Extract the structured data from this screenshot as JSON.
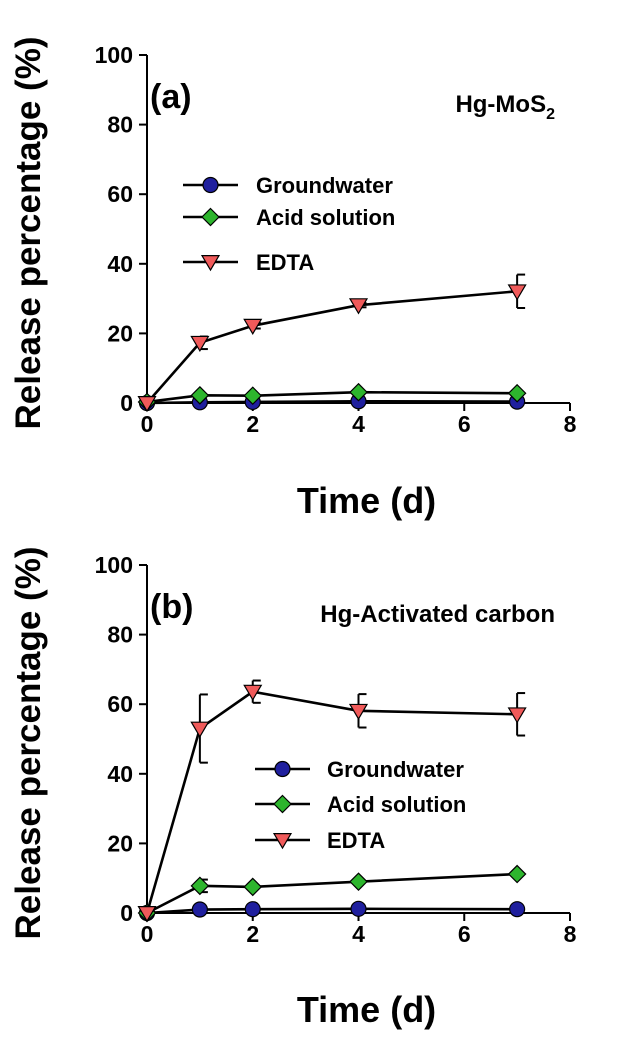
{
  "chart_data": [
    {
      "panel_label": "(a)",
      "type": "line",
      "title": "Hg-MoS₂",
      "title_main": "Hg-MoS",
      "title_sub": "2",
      "xlabel": "Time (d)",
      "ylabel": "Release percentage (%)",
      "xlim": [
        0,
        8
      ],
      "ylim": [
        0,
        100
      ],
      "xticks": [
        "0",
        "2",
        "4",
        "6",
        "8"
      ],
      "yticks": [
        "0",
        "20",
        "40",
        "60",
        "80",
        "100"
      ],
      "x": [
        0,
        1,
        2,
        4,
        7
      ],
      "legend_position": "center-left",
      "series": [
        {
          "name": "Groundwater",
          "marker": "circle",
          "color": "#1f1f9e",
          "values": [
            0,
            0.2,
            0.3,
            0.5,
            0.4
          ],
          "errors": [
            0,
            0,
            0,
            0,
            0
          ]
        },
        {
          "name": "Acid solution",
          "marker": "diamond",
          "color": "#2db52d",
          "values": [
            0.3,
            2.2,
            2.1,
            3.1,
            2.8
          ],
          "errors": [
            0,
            0,
            0,
            0,
            0
          ]
        },
        {
          "name": "EDTA",
          "marker": "triangle-down",
          "color": "#f05a5a",
          "values": [
            0,
            17.3,
            22.2,
            28.1,
            32.1
          ],
          "errors": [
            0,
            1.8,
            0.8,
            0.6,
            4.8
          ]
        }
      ]
    },
    {
      "panel_label": "(b)",
      "type": "line",
      "title": "Hg-Activated carbon",
      "title_main": "Hg-Activated carbon",
      "title_sub": "",
      "xlabel": "Time (d)",
      "ylabel": "Release percentage (%)",
      "xlim": [
        0,
        8
      ],
      "ylim": [
        0,
        100
      ],
      "xticks": [
        "0",
        "2",
        "4",
        "6",
        "8"
      ],
      "yticks": [
        "0",
        "20",
        "40",
        "60",
        "80",
        "100"
      ],
      "x": [
        0,
        1,
        2,
        4,
        7
      ],
      "legend_position": "center-right",
      "series": [
        {
          "name": "Groundwater",
          "marker": "circle",
          "color": "#1f1f9e",
          "values": [
            0,
            1.0,
            1.1,
            1.2,
            1.1
          ],
          "errors": [
            0,
            0,
            0,
            0,
            0
          ]
        },
        {
          "name": "Acid solution",
          "marker": "diamond",
          "color": "#2db52d",
          "values": [
            0,
            7.8,
            7.5,
            9.0,
            11.2
          ],
          "errors": [
            0,
            1.8,
            0,
            0,
            0
          ]
        },
        {
          "name": "EDTA",
          "marker": "triangle-down",
          "color": "#f05a5a",
          "values": [
            0,
            53.0,
            63.6,
            58.1,
            57.1
          ],
          "errors": [
            0,
            9.8,
            3.2,
            4.8,
            6.1
          ]
        }
      ]
    }
  ]
}
